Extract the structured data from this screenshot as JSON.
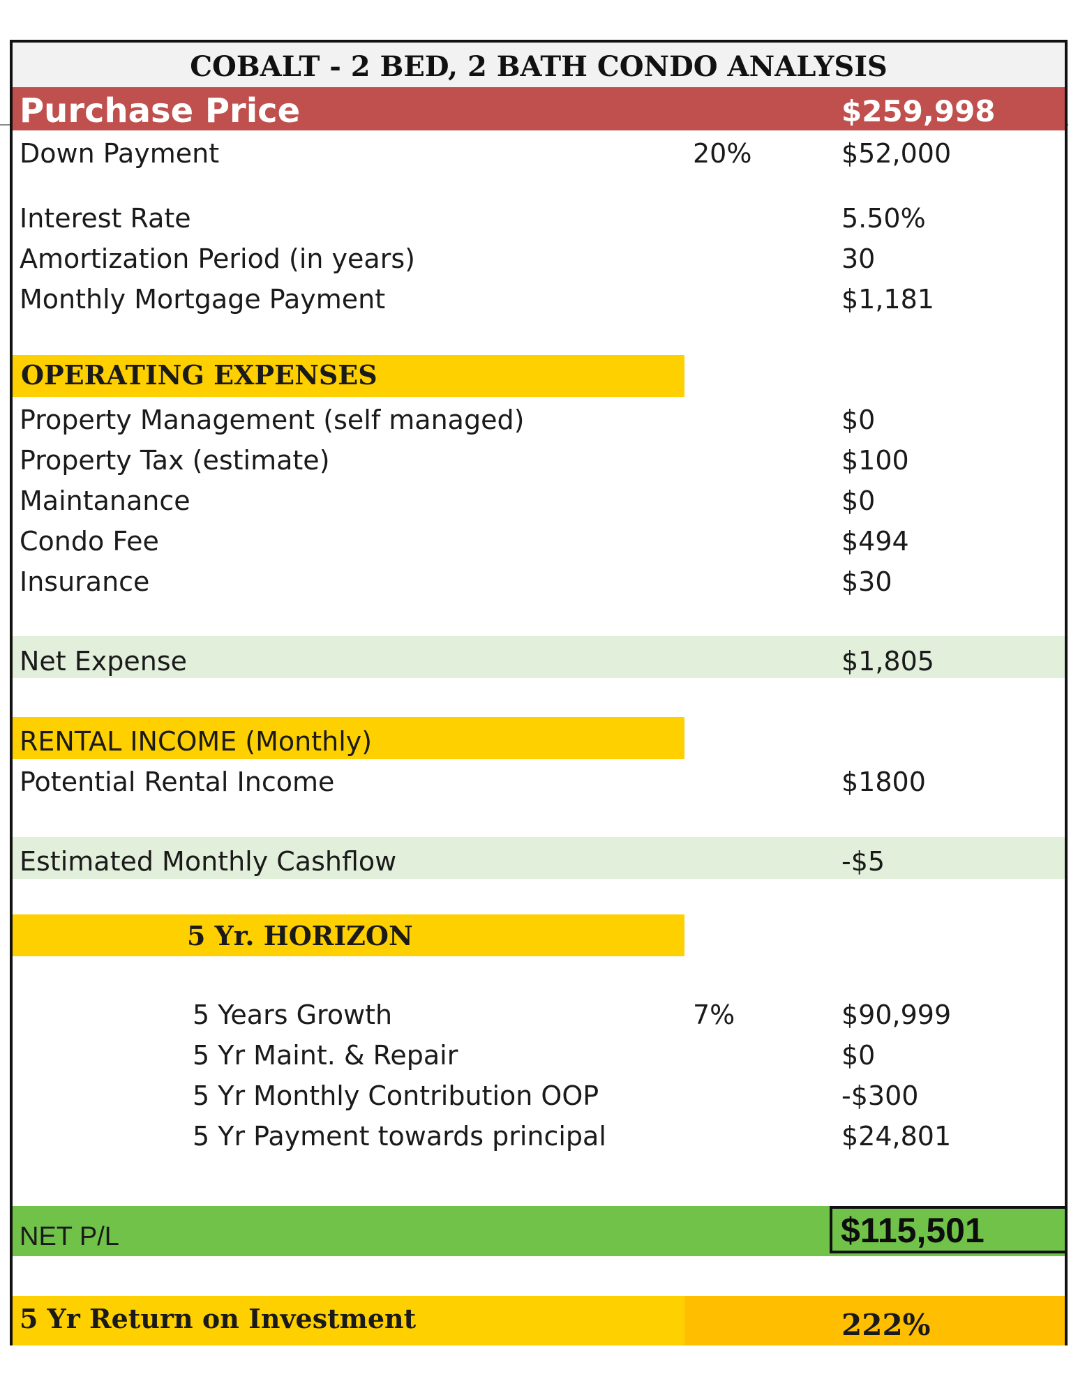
{
  "title": "COBALT - 2 BED, 2 BATH CONDO ANALYSIS",
  "purchase": {
    "label": "Purchase Price",
    "value": "$259,998"
  },
  "down_payment": {
    "label": "Down Payment",
    "pct": "20%",
    "value": "$52,000"
  },
  "financing": {
    "interest_rate": {
      "label": "Interest Rate",
      "value": "5.50%"
    },
    "amortization": {
      "label": "Amortization Period (in years)",
      "value": "30"
    },
    "monthly_mortgage": {
      "label": "Monthly Mortgage Payment",
      "value": "$1,181"
    }
  },
  "operating_expenses": {
    "header": "OPERATING EXPENSES",
    "items": [
      {
        "label": "Property Management (self managed)",
        "value": "$0"
      },
      {
        "label": "Property Tax (estimate)",
        "value": "$100"
      },
      {
        "label": "Maintanance",
        "value": "$0"
      },
      {
        "label": "Condo Fee",
        "value": "$494"
      },
      {
        "label": "Insurance",
        "value": "$30"
      }
    ]
  },
  "net_expense": {
    "label": "Net Expense",
    "value": "$1,805"
  },
  "rental_income": {
    "header": "RENTAL INCOME (Monthly)",
    "potential": {
      "label": "Potential Rental Income",
      "value": "$1800"
    }
  },
  "cashflow": {
    "label": "Estimated Monthly Cashflow",
    "value": "-$5"
  },
  "horizon": {
    "header": "5  Yr. HORIZON",
    "items": [
      {
        "label": "5 Years Growth",
        "pct": "7%",
        "value": "$90,999"
      },
      {
        "label": "5 Yr Maint. & Repair",
        "value": "$0"
      },
      {
        "label": "5 Yr Monthly Contribution OOP",
        "value": "-$300"
      },
      {
        "label": "5 Yr Payment towards principal",
        "value": "$24,801"
      }
    ]
  },
  "net_pl": {
    "label": "NET P/L",
    "value": "$115,501"
  },
  "roi": {
    "label": "5 Yr Return on Investment",
    "value": "222%"
  },
  "colors": {
    "purchase_bar": "#c0504d",
    "section_header": "#ffd000",
    "subtotal_band": "#e2efda",
    "net_pl_band": "#70c249",
    "roi_value_band": "#ffbf00"
  }
}
